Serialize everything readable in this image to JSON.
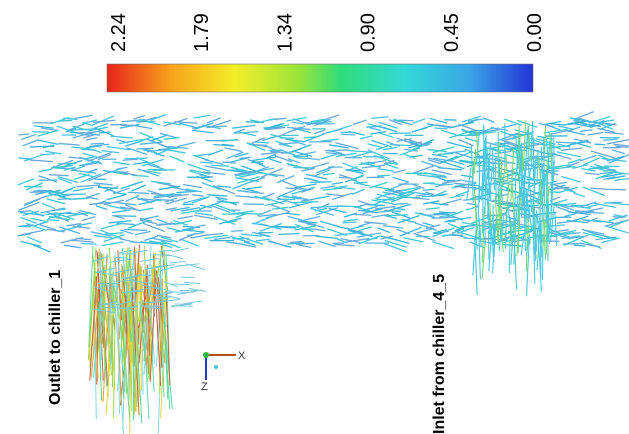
{
  "colorbar": {
    "labels": [
      "2.24",
      "1.79",
      "1.34",
      "0.90",
      "0.45",
      "0.00"
    ]
  },
  "annotations": {
    "outlet": "Outlet to chiller_1",
    "inlet": "Inlet from chiller_4_5"
  },
  "triad": {
    "x": "X",
    "z": "Z"
  }
}
